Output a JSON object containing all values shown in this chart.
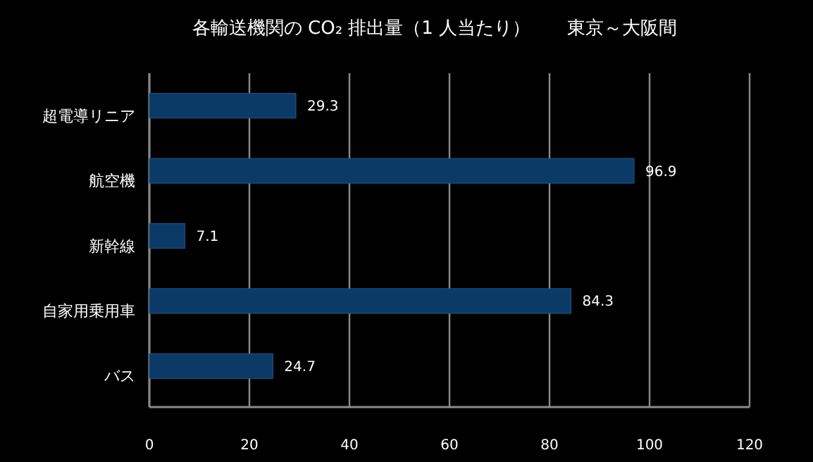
{
  "chart_data": {
    "type": "bar",
    "orientation": "horizontal",
    "title": "各輸送機関の CO₂ 排出量（1 人当たり）　　東京～大阪間",
    "categories": [
      "超電導リニア",
      "航空機",
      "新幹線",
      "自家用乗用車",
      "バス"
    ],
    "values": [
      29.3,
      96.9,
      7.1,
      84.3,
      24.7
    ],
    "color": "#0b3a66",
    "xlim": [
      0,
      120
    ],
    "xticks": [
      0,
      20,
      40,
      60,
      80,
      100,
      120
    ],
    "grid": "x",
    "data_labels": true
  }
}
